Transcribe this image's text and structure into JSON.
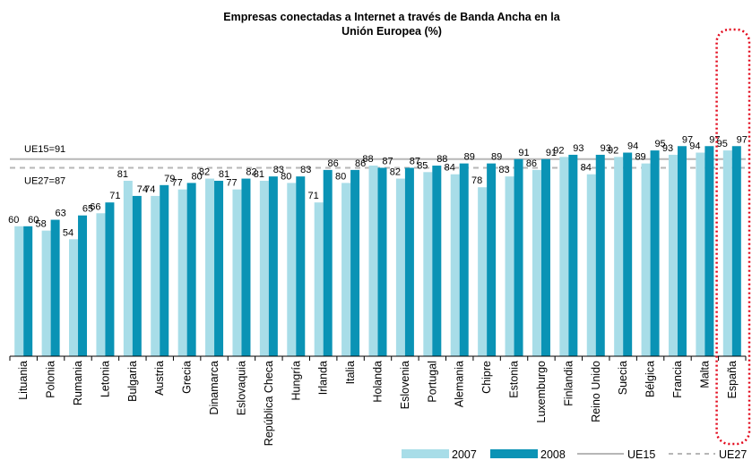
{
  "chart_data": {
    "type": "bar",
    "title_line1": "Empresas conectadas a Internet  a través de Banda Ancha en la",
    "title_line2": "Unión Europea (%)",
    "categories": [
      "Lituania",
      "Polonia",
      "Rumania",
      "Letonia",
      "Bulgaria",
      "Austria",
      "Grecia",
      "Dinamarca",
      "Eslovaquia",
      "República Checa",
      "Hungría",
      "Irlanda",
      "Italia",
      "Holanda",
      "Eslovenia",
      "Portugal",
      "Alemania",
      "Chipre",
      "Estonia",
      "Luxemburgo",
      "Finlandia",
      "Reino Unido",
      "Suecia",
      "Bélgica",
      "Francia",
      "Malta",
      "España"
    ],
    "series": [
      {
        "name": "2007",
        "color": "#a8dde8",
        "values": [
          60,
          58,
          54,
          66,
          81,
          74,
          77,
          82,
          77,
          81,
          80,
          71,
          80,
          88,
          82,
          85,
          84,
          78,
          83,
          86,
          92,
          84,
          92,
          89,
          93,
          94,
          95
        ]
      },
      {
        "name": "2008",
        "color": "#0a93b5",
        "values": [
          60,
          63,
          65,
          71,
          74,
          79,
          80,
          81,
          82,
          83,
          83,
          86,
          86,
          87,
          87,
          88,
          89,
          89,
          91,
          91,
          93,
          93,
          94,
          95,
          97,
          97,
          97
        ]
      }
    ],
    "ylim": [
      0,
      105
    ],
    "reference_lines": [
      {
        "name": "UE15",
        "label": "UE15=91",
        "value": 91,
        "color": "#b7b7b7",
        "style": "solid"
      },
      {
        "name": "UE27",
        "label": "UE27=87",
        "value": 87,
        "color": "#b7b7b7",
        "style": "dashed"
      }
    ],
    "highlight_category": "España",
    "highlight_color": "#e3081b",
    "legend_position": "bottom-right"
  }
}
